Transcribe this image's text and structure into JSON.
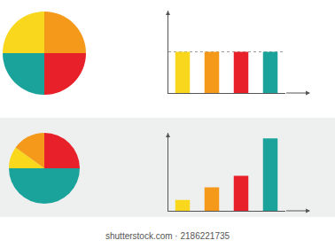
{
  "chart_data": [
    {
      "type": "pie",
      "values": [
        25,
        25,
        25,
        25
      ],
      "colors": [
        "#f4991a",
        "#e8202a",
        "#1aa39a",
        "#f9d71c"
      ]
    },
    {
      "type": "bar",
      "categories": [
        null,
        null,
        null,
        null
      ],
      "values": [
        50,
        50,
        50,
        50
      ],
      "colors": [
        "#f9d71c",
        "#f4991a",
        "#e8202a",
        "#1aa39a"
      ],
      "ylim": [
        0,
        100
      ],
      "yticks": [
        50
      ],
      "grid": true,
      "tick_labels": false
    },
    {
      "type": "pie",
      "values": [
        25,
        50,
        10,
        15
      ],
      "colors": [
        "#e8202a",
        "#1aa39a",
        "#f9d71c",
        "#f4991a"
      ]
    },
    {
      "type": "bar",
      "categories": [
        null,
        null,
        null,
        null
      ],
      "values": [
        14,
        30,
        45,
        93
      ],
      "colors": [
        "#f9d71c",
        "#f4991a",
        "#e8202a",
        "#1aa39a"
      ],
      "ylim": [
        0,
        100
      ],
      "yticks": [],
      "grid": false,
      "tick_labels": false
    }
  ],
  "footer": "shutterstock.com · 2186221735"
}
